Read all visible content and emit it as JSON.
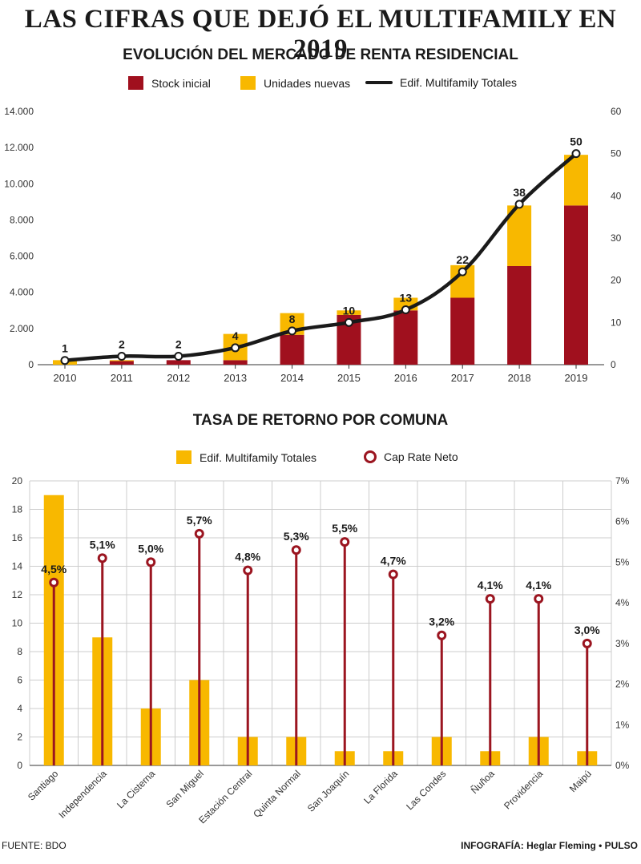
{
  "main_title": "LAS CIFRAS QUE DEJÓ EL MULTIFAMILY EN 2019",
  "source": "FUENTE: BDO",
  "credit": "INFOGRAFÍA: Heglar Fleming • PULSO",
  "colors": {
    "stock": "#a0101e",
    "new_units": "#f8b800",
    "line": "#1a1a1a",
    "cap_rate": "#9b1520",
    "grid": "#cccccc"
  },
  "chart_data": [
    {
      "type": "bar",
      "title": "EVOLUCIÓN DEL MERCADO DE RENTA RESIDENCIAL",
      "stacked": true,
      "categories": [
        "2010",
        "2011",
        "2012",
        "2013",
        "2014",
        "2015",
        "2016",
        "2017",
        "2018",
        "2019"
      ],
      "series": [
        {
          "name": "Stock inicial",
          "axis": "left",
          "values": [
            0,
            200,
            250,
            250,
            1650,
            2750,
            3000,
            3700,
            5450,
            8800
          ]
        },
        {
          "name": "Unidades nuevas",
          "axis": "left",
          "values": [
            250,
            50,
            0,
            1450,
            1200,
            250,
            700,
            1800,
            3350,
            2800
          ]
        },
        {
          "name": "Edif. Multifamily Totales",
          "type": "line",
          "axis": "right",
          "values": [
            1,
            2,
            2,
            4,
            8,
            10,
            13,
            22,
            38,
            50
          ]
        }
      ],
      "data_labels": [
        "1",
        "2",
        "2",
        "4",
        "8",
        "10",
        "13",
        "22",
        "38",
        "50"
      ],
      "ylim": [
        0,
        14000
      ],
      "y_ticks": [
        "0",
        "2.000",
        "4.000",
        "6.000",
        "8.000",
        "10.000",
        "12.000",
        "14.000"
      ],
      "y_tick_values": [
        0,
        2000,
        4000,
        6000,
        8000,
        10000,
        12000,
        14000
      ],
      "y2lim": [
        0,
        60
      ],
      "y2_ticks": [
        "0",
        "10",
        "20",
        "30",
        "40",
        "50",
        "60"
      ],
      "y2_tick_values": [
        0,
        10,
        20,
        30,
        40,
        50,
        60
      ],
      "legend_position": "top-center",
      "grid": false
    },
    {
      "type": "bar",
      "title": "TASA DE RETORNO POR COMUNA",
      "categories": [
        "Santiago",
        "Independencia",
        "La Cisterna",
        "San Miguel",
        "Estación Central",
        "Quinta Normal",
        "San Joaquín",
        "La Florida",
        "Las Condes",
        "Ñuñoa",
        "Providencia",
        "Maipú"
      ],
      "series": [
        {
          "name": "Edif. Multifamily Totales",
          "axis": "left",
          "values": [
            19,
            9,
            4,
            6,
            2,
            2,
            1,
            1,
            2,
            1,
            2,
            1
          ]
        },
        {
          "name": "Cap Rate Neto",
          "type": "lollipop",
          "axis": "right",
          "values": [
            4.5,
            5.1,
            5.0,
            5.7,
            4.8,
            5.3,
            5.5,
            4.7,
            3.2,
            4.1,
            4.1,
            3.0
          ]
        }
      ],
      "data_labels": [
        "4,5%",
        "5,1%",
        "5,0%",
        "5,7%",
        "4,8%",
        "5,3%",
        "5,5%",
        "4,7%",
        "3,2%",
        "4,1%",
        "4,1%",
        "3,0%"
      ],
      "ylim": [
        0,
        20
      ],
      "y_ticks": [
        "0",
        "2",
        "4",
        "6",
        "8",
        "10",
        "12",
        "14",
        "16",
        "18",
        "20"
      ],
      "y_tick_values": [
        0,
        2,
        4,
        6,
        8,
        10,
        12,
        14,
        16,
        18,
        20
      ],
      "y2lim": [
        0,
        7
      ],
      "y2_ticks": [
        "0%",
        "1%",
        "2%",
        "3%",
        "4%",
        "5%",
        "6%",
        "7%"
      ],
      "y2_tick_values": [
        0,
        1,
        2,
        3,
        4,
        5,
        6,
        7
      ],
      "legend_position": "top-center",
      "grid": true
    }
  ]
}
